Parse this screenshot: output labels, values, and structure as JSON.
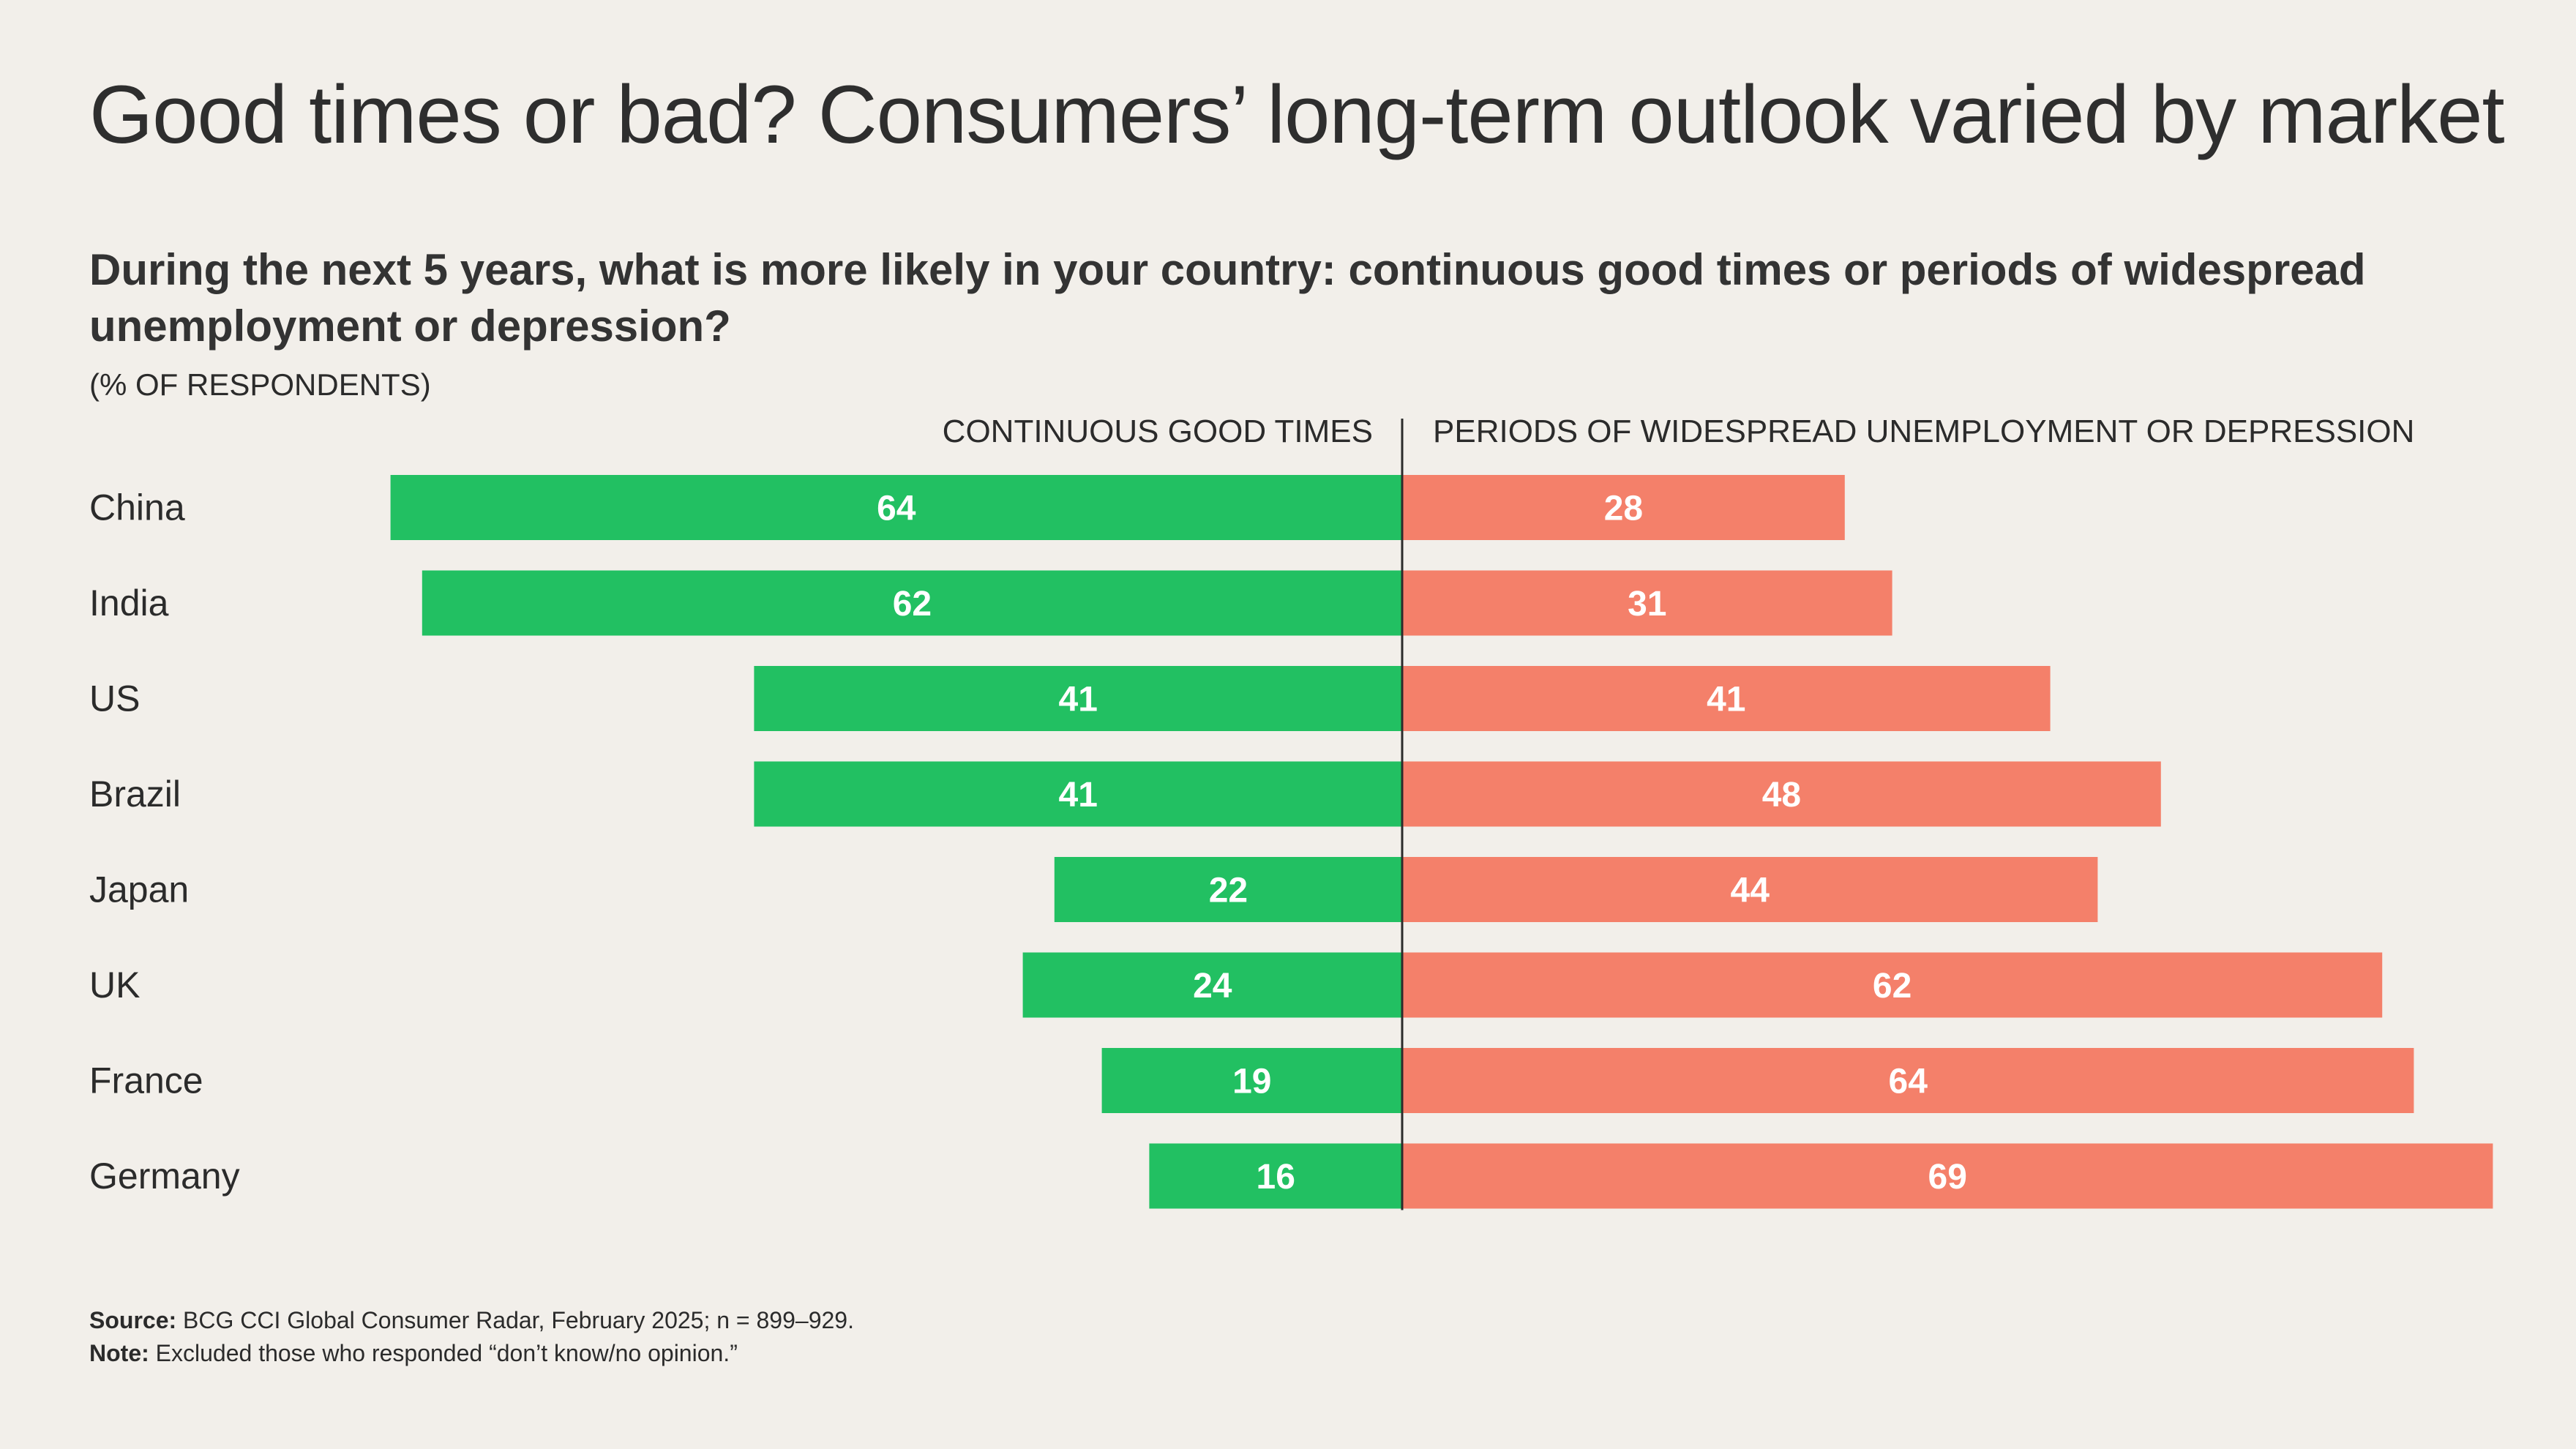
{
  "title": "Good times or bad? Consumers’ long-term outlook varied by market",
  "question": "During the next 5 years, what is more likely in your country: continuous good times or periods of widespread unemployment or depression?",
  "unit_label": "(% OF RESPONDENTS)",
  "colors": {
    "good": "#22c062",
    "bad": "#f4806a",
    "axis": "#2b2b2b",
    "background": "#f2efea"
  },
  "chart_data": {
    "type": "bar",
    "orientation": "diverging-horizontal",
    "categories": [
      "China",
      "India",
      "US",
      "Brazil",
      "Japan",
      "UK",
      "France",
      "Germany"
    ],
    "series": [
      {
        "name": "CONTINUOUS GOOD TIMES",
        "direction": "left",
        "values": [
          64,
          62,
          41,
          41,
          22,
          24,
          19,
          16
        ]
      },
      {
        "name": "PERIODS OF WIDESPREAD UNEMPLOYMENT OR DEPRESSION",
        "direction": "right",
        "values": [
          28,
          31,
          41,
          48,
          44,
          62,
          64,
          69
        ]
      }
    ],
    "value_max": 69,
    "grid": false,
    "data_labels": true
  },
  "footer": {
    "source_label": "Source:",
    "source_text": " BCG CCI Global Consumer Radar, February 2025; n = 899–929.",
    "note_label": "Note:",
    "note_text": " Excluded those who responded “don’t know/no opinion.”"
  }
}
